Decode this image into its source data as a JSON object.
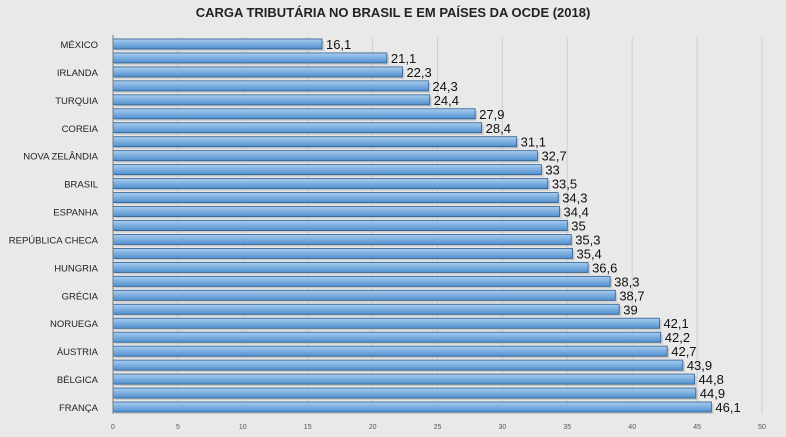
{
  "chart_data": {
    "type": "bar",
    "orientation": "horizontal",
    "title": "CARGA TRIBUTÁRIA NO BRASIL E EM PAÍSES DA OCDE (2018)",
    "categories": [
      "MÉXICO",
      "",
      "IRLANDA",
      "",
      "TURQUIA",
      "",
      "COREIA",
      "",
      "NOVA ZELÂNDIA",
      "",
      "BRASIL",
      "",
      "ESPANHA",
      "",
      "REPÚBLICA CHECA",
      "",
      "HUNGRIA",
      "",
      "GRÉCIA",
      "",
      "NORUEGA",
      "",
      "ÁUSTRIA",
      "",
      "BÉLGICA",
      "",
      "FRANÇA"
    ],
    "values": [
      16.1,
      21.1,
      22.3,
      24.3,
      24.4,
      27.9,
      28.4,
      31.1,
      32.7,
      33,
      33.5,
      34.3,
      34.4,
      35,
      35.3,
      35.4,
      36.6,
      38.3,
      38.7,
      39,
      42.1,
      42.2,
      42.7,
      43.9,
      44.8,
      44.9,
      46.1
    ],
    "data_labels": [
      "16,1",
      "21,1",
      "22,3",
      "24,3",
      "24,4",
      "27,9",
      "28,4",
      "31,1",
      "32,7",
      "33",
      "33,5",
      "34,3",
      "34,4",
      "35",
      "35,3",
      "35,4",
      "36,6",
      "38,3",
      "38,7",
      "39",
      "42,1",
      "42,2",
      "42,7",
      "43,9",
      "44,8",
      "44,9",
      "46,1"
    ],
    "xlim": [
      0,
      50
    ],
    "x_ticks": [
      0,
      5,
      10,
      15,
      20,
      25,
      30,
      35,
      40,
      45,
      50
    ],
    "grid": true,
    "legend": "none",
    "colors": {
      "bar_top": "#aacdf0",
      "bar_bottom": "#4f8fce",
      "bar_edge": "#2e5f90",
      "grid": "#cfcfcf"
    }
  }
}
